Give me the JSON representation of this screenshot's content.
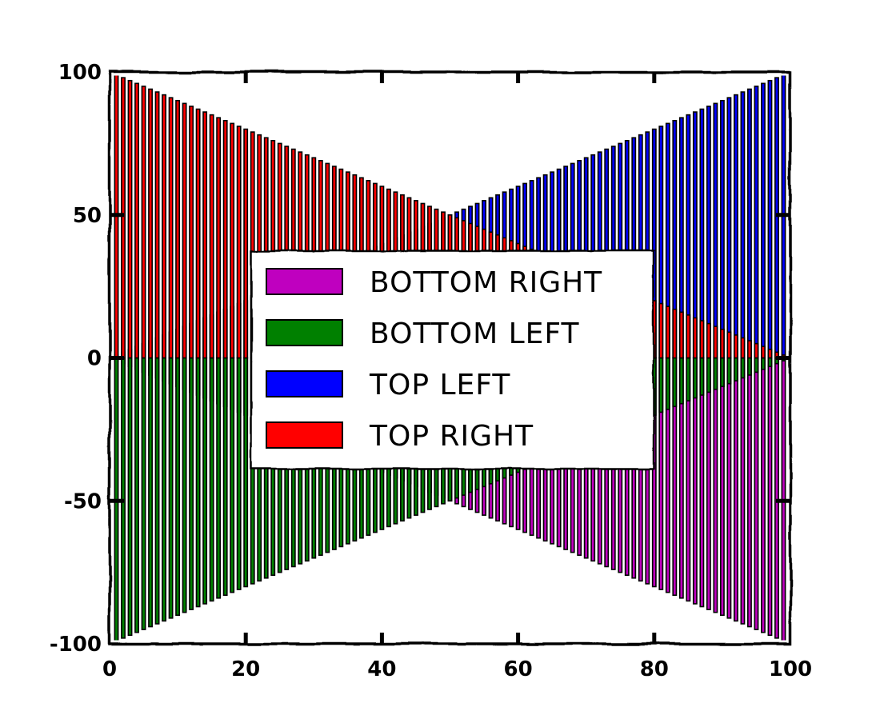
{
  "chart_data": {
    "type": "bar",
    "title": "",
    "xlabel": "",
    "ylabel": "",
    "xlim": [
      0,
      100
    ],
    "ylim": [
      -100,
      100
    ],
    "x": [
      0,
      1,
      2,
      3,
      4,
      5,
      6,
      7,
      8,
      9,
      10,
      11,
      12,
      13,
      14,
      15,
      16,
      17,
      18,
      19,
      20,
      21,
      22,
      23,
      24,
      25,
      26,
      27,
      28,
      29,
      30,
      31,
      32,
      33,
      34,
      35,
      36,
      37,
      38,
      39,
      40,
      41,
      42,
      43,
      44,
      45,
      46,
      47,
      48,
      49,
      50,
      51,
      52,
      53,
      54,
      55,
      56,
      57,
      58,
      59,
      60,
      61,
      62,
      63,
      64,
      65,
      66,
      67,
      68,
      69,
      70,
      71,
      72,
      73,
      74,
      75,
      76,
      77,
      78,
      79,
      80,
      81,
      82,
      83,
      84,
      85,
      86,
      87,
      88,
      89,
      90,
      91,
      92,
      93,
      94,
      95,
      96,
      97,
      98,
      99
    ],
    "bar_width": 0.5,
    "series": [
      {
        "name": "bottom right",
        "color": "#bf00bf",
        "sign": -1,
        "rule": "x",
        "values": [
          0,
          -1,
          -2,
          -3,
          -4,
          -5,
          -6,
          -7,
          -8,
          -9,
          -10,
          -11,
          -12,
          -13,
          -14,
          -15,
          -16,
          -17,
          -18,
          -19,
          -20,
          -21,
          -22,
          -23,
          -24,
          -25,
          -26,
          -27,
          -28,
          -29,
          -30,
          -31,
          -32,
          -33,
          -34,
          -35,
          -36,
          -37,
          -38,
          -39,
          -40,
          -41,
          -42,
          -43,
          -44,
          -45,
          -46,
          -47,
          -48,
          -49,
          -50,
          -51,
          -52,
          -53,
          -54,
          -55,
          -56,
          -57,
          -58,
          -59,
          -60,
          -61,
          -62,
          -63,
          -64,
          -65,
          -66,
          -67,
          -68,
          -69,
          -70,
          -71,
          -72,
          -73,
          -74,
          -75,
          -76,
          -77,
          -78,
          -79,
          -80,
          -81,
          -82,
          -83,
          -84,
          -85,
          -86,
          -87,
          -88,
          -89,
          -90,
          -91,
          -92,
          -93,
          -94,
          -95,
          -96,
          -97,
          -98,
          -99
        ]
      },
      {
        "name": "bottom left",
        "color": "#008000",
        "sign": -1,
        "rule": "100-x",
        "values": [
          -100,
          -99,
          -98,
          -97,
          -96,
          -95,
          -94,
          -93,
          -92,
          -91,
          -90,
          -89,
          -88,
          -87,
          -86,
          -85,
          -84,
          -83,
          -82,
          -81,
          -80,
          -79,
          -78,
          -77,
          -76,
          -75,
          -74,
          -73,
          -72,
          -71,
          -70,
          -69,
          -68,
          -67,
          -66,
          -65,
          -64,
          -63,
          -62,
          -61,
          -60,
          -59,
          -58,
          -57,
          -56,
          -55,
          -54,
          -53,
          -52,
          -51,
          -50,
          -49,
          -48,
          -47,
          -46,
          -45,
          -44,
          -43,
          -42,
          -41,
          -40,
          -39,
          -38,
          -37,
          -36,
          -35,
          -34,
          -33,
          -32,
          -31,
          -30,
          -29,
          -28,
          -27,
          -26,
          -25,
          -24,
          -23,
          -22,
          -21,
          -20,
          -19,
          -18,
          -17,
          -16,
          -15,
          -14,
          -13,
          -12,
          -11,
          -10,
          -9,
          -8,
          -7,
          -6,
          -5,
          -4,
          -3,
          -2,
          -1
        ]
      },
      {
        "name": "top left",
        "color": "#0000ff",
        "sign": 1,
        "rule": "x",
        "values": [
          0,
          1,
          2,
          3,
          4,
          5,
          6,
          7,
          8,
          9,
          10,
          11,
          12,
          13,
          14,
          15,
          16,
          17,
          18,
          19,
          20,
          21,
          22,
          23,
          24,
          25,
          26,
          27,
          28,
          29,
          30,
          31,
          32,
          33,
          34,
          35,
          36,
          37,
          38,
          39,
          40,
          41,
          42,
          43,
          44,
          45,
          46,
          47,
          48,
          49,
          50,
          51,
          52,
          53,
          54,
          55,
          56,
          57,
          58,
          59,
          60,
          61,
          62,
          63,
          64,
          65,
          66,
          67,
          68,
          69,
          70,
          71,
          72,
          73,
          74,
          75,
          76,
          77,
          78,
          79,
          80,
          81,
          82,
          83,
          84,
          85,
          86,
          87,
          88,
          89,
          90,
          91,
          92,
          93,
          94,
          95,
          96,
          97,
          98,
          99
        ]
      },
      {
        "name": "top right",
        "color": "#ff0000",
        "sign": 1,
        "rule": "100-x",
        "values": [
          100,
          99,
          98,
          97,
          96,
          95,
          94,
          93,
          92,
          91,
          90,
          89,
          88,
          87,
          86,
          85,
          84,
          83,
          82,
          81,
          80,
          79,
          78,
          77,
          76,
          75,
          74,
          73,
          72,
          71,
          70,
          69,
          68,
          67,
          66,
          65,
          64,
          63,
          62,
          61,
          60,
          59,
          58,
          57,
          56,
          55,
          54,
          53,
          52,
          51,
          50,
          49,
          48,
          47,
          46,
          45,
          44,
          43,
          42,
          41,
          40,
          39,
          38,
          37,
          36,
          35,
          34,
          33,
          32,
          31,
          30,
          29,
          28,
          27,
          26,
          25,
          24,
          23,
          22,
          21,
          20,
          19,
          18,
          17,
          16,
          15,
          14,
          13,
          12,
          11,
          10,
          9,
          8,
          7,
          6,
          5,
          4,
          3,
          2,
          1
        ]
      }
    ],
    "xticks": [
      0,
      20,
      40,
      60,
      80,
      100
    ],
    "yticks": [
      -100,
      -50,
      0,
      50,
      100
    ],
    "legend": {
      "placement": "center",
      "entries": [
        {
          "label": "bottom right",
          "color": "#bf00bf"
        },
        {
          "label": "bottom left",
          "color": "#008000"
        },
        {
          "label": "top left",
          "color": "#0000ff"
        },
        {
          "label": "top right",
          "color": "#ff0000"
        }
      ]
    },
    "grid": false,
    "style": "xkcd"
  }
}
